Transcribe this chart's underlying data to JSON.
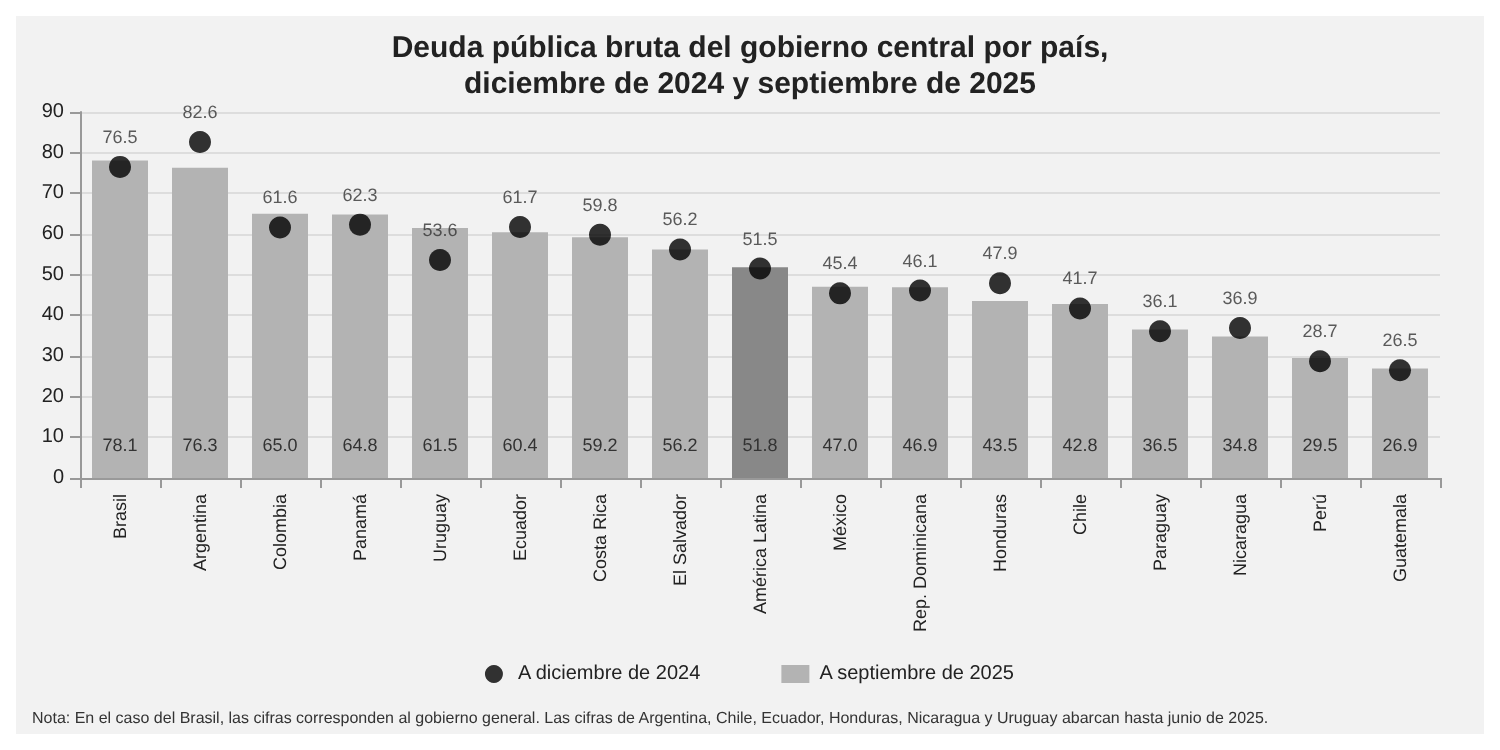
{
  "chart_data": {
    "type": "bar",
    "title": "Deuda pública bruta del gobierno central por país,\ndiciembre de 2024 y septiembre de 2025",
    "categories": [
      "Brasil",
      "Argentina",
      "Colombia",
      "Panamá",
      "Uruguay",
      "Ecuador",
      "Costa Rica",
      "El Salvador",
      "América Latina",
      "México",
      "Rep. Dominicana",
      "Honduras",
      "Chile",
      "Paraguay",
      "Nicaragua",
      "Perú",
      "Guatemala"
    ],
    "series": [
      {
        "name": "A diciembre de 2024",
        "type": "scatter",
        "color": "#000000",
        "values": [
          76.5,
          82.6,
          61.6,
          62.3,
          53.6,
          61.7,
          59.8,
          56.2,
          51.5,
          45.4,
          46.1,
          47.9,
          41.7,
          36.1,
          36.9,
          28.7,
          26.5
        ],
        "value_labels": [
          "76.5",
          "82.6",
          "61.6",
          "62.3",
          "53.6",
          "61.7",
          "59.8",
          "56.2",
          "51.5",
          "45.4",
          "46.1",
          "47.9",
          "41.7",
          "36.1",
          "36.9",
          "28.7",
          "26.5"
        ]
      },
      {
        "name": "A septiembre de 2025",
        "color": "#b3b3b3",
        "colors": [
          "#b3b3b3",
          "#b3b3b3",
          "#b3b3b3",
          "#b3b3b3",
          "#b3b3b3",
          "#b3b3b3",
          "#b3b3b3",
          "#b3b3b3",
          "#888888",
          "#b3b3b3",
          "#b3b3b3",
          "#b3b3b3",
          "#b3b3b3",
          "#b3b3b3",
          "#b3b3b3",
          "#b3b3b3",
          "#b3b3b3"
        ],
        "values": [
          78.1,
          76.3,
          65.0,
          64.8,
          61.5,
          60.4,
          59.2,
          56.2,
          51.8,
          47.0,
          46.9,
          43.5,
          42.8,
          36.5,
          34.8,
          29.5,
          26.9
        ],
        "value_labels": [
          "78.1",
          "76.3",
          "65.0",
          "64.8",
          "61.5",
          "60.4",
          "59.2",
          "56.2",
          "51.8",
          "47.0",
          "46.9",
          "43.5",
          "42.8",
          "36.5",
          "34.8",
          "29.5",
          "26.9"
        ]
      }
    ],
    "ylim": [
      0,
      90
    ],
    "yticks": [
      0,
      10,
      20,
      30,
      40,
      50,
      60,
      70,
      80,
      90
    ],
    "grid": "y",
    "legend": "bottom",
    "marker": "circle",
    "annotations": [
      "Nota: En el caso del Brasil, las cifras corresponden al gobierno general. Las cifras de Argentina, Chile, Ecuador, Honduras, Nicaragua y Uruguay abarcan hasta junio de 2025."
    ]
  }
}
